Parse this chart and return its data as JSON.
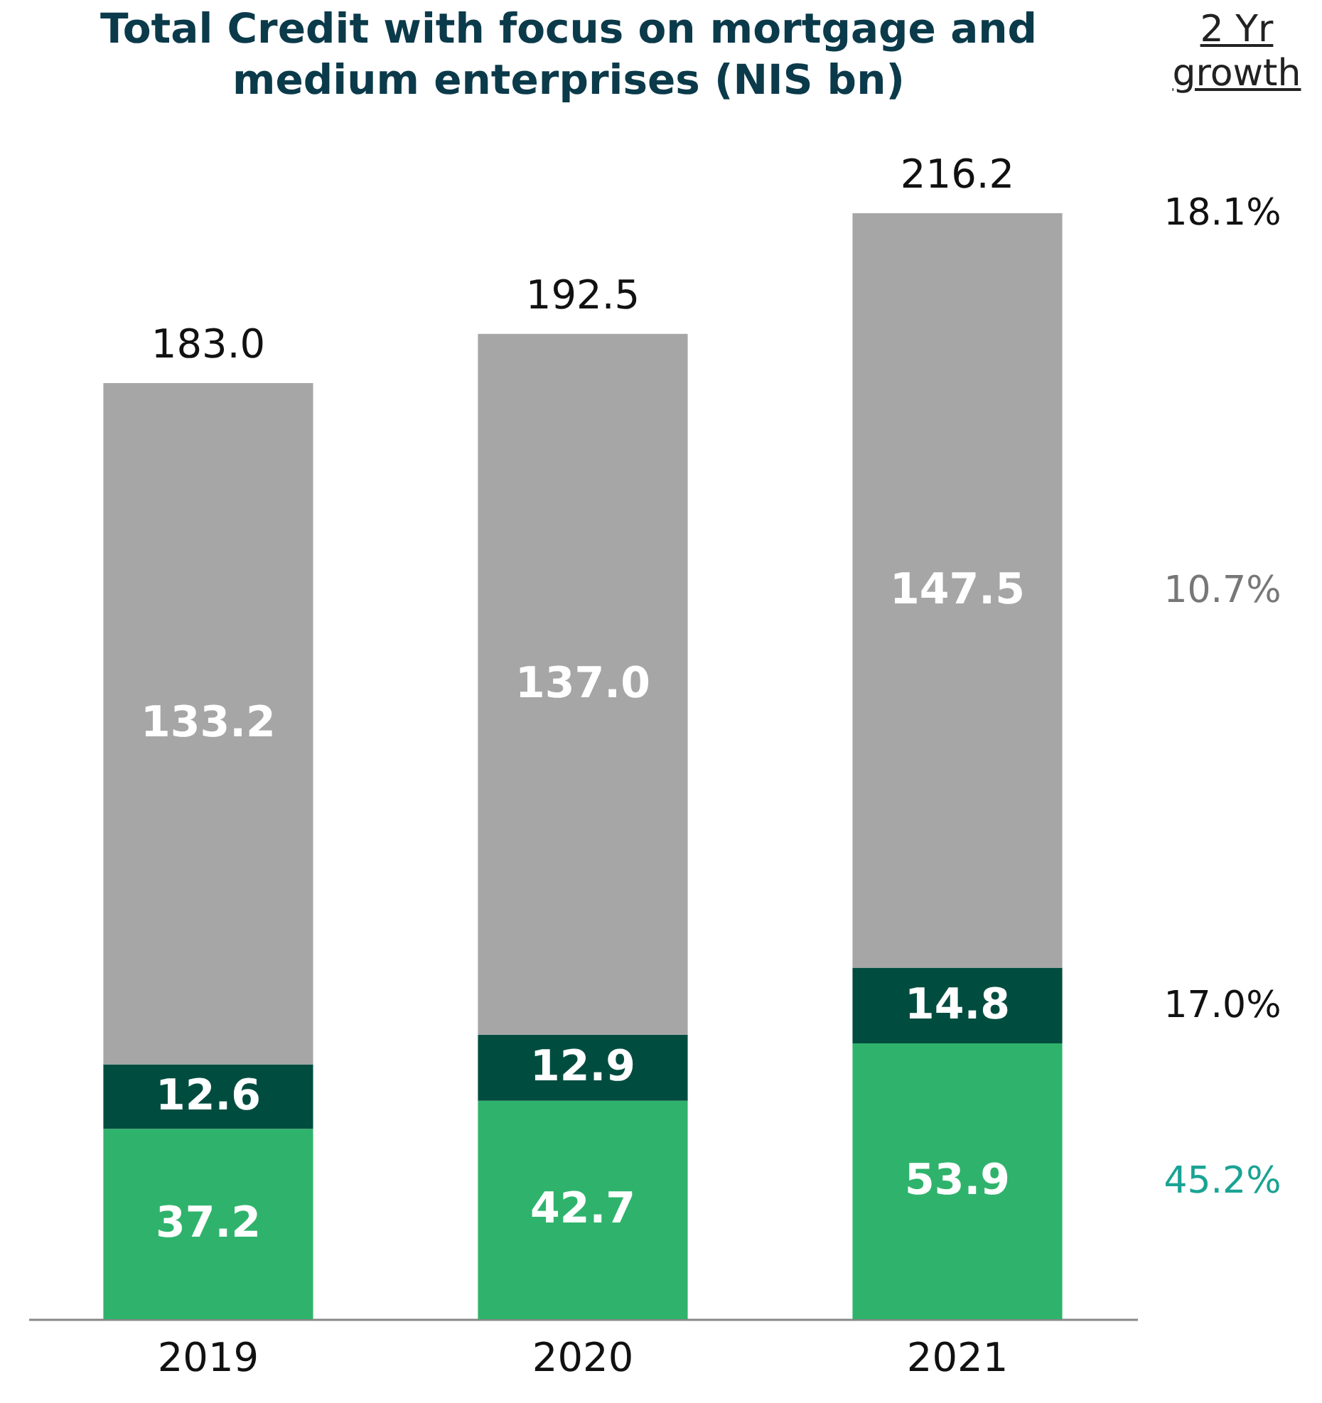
{
  "chart_data": {
    "type": "bar",
    "title": "Total Credit with focus on mortgage and medium enterprises (NIS bn)",
    "categories": [
      "2019",
      "2020",
      "2021"
    ],
    "stacked": true,
    "totals": [
      "183.0",
      "192.5",
      "216.2"
    ],
    "series": [
      {
        "color": "#2fb36c",
        "values": [
          37.2,
          42.7,
          53.9
        ],
        "value_labels": [
          "37.2",
          "42.7",
          "53.9"
        ]
      },
      {
        "color": "#004d40",
        "values": [
          12.6,
          12.9,
          14.8
        ],
        "value_labels": [
          "12.6",
          "12.9",
          "14.8"
        ]
      },
      {
        "color": "#a6a6a6",
        "values": [
          133.2,
          137.0,
          147.5
        ],
        "value_labels": [
          "133.2",
          "137.0",
          "147.5"
        ]
      }
    ],
    "annotations": [
      "2 Yr growth",
      "18.1%",
      "10.7%",
      "17.0%",
      "45.2%"
    ]
  }
}
